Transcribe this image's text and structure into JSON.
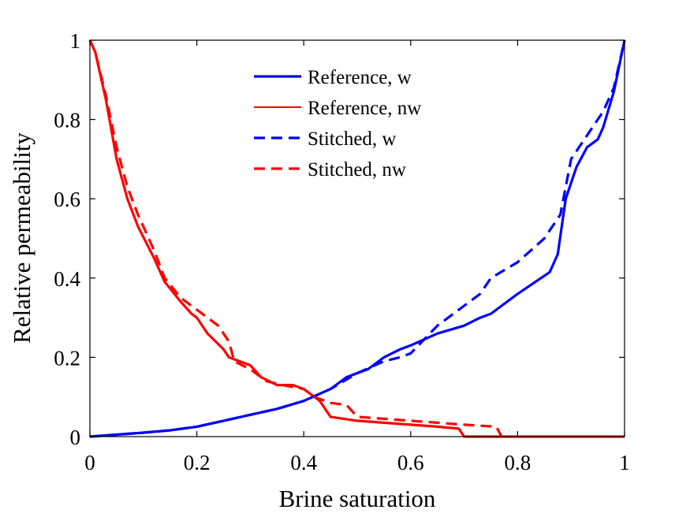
{
  "chart_data": {
    "type": "line",
    "title": "",
    "xlabel": "Brine saturation",
    "ylabel": "Relative permeability",
    "xlim": [
      0,
      1
    ],
    "ylim": [
      0,
      1
    ],
    "xticks": [
      "0",
      "0.2",
      "0.4",
      "0.6",
      "0.8",
      "1"
    ],
    "yticks": [
      "0",
      "0.2",
      "0.4",
      "0.6",
      "0.8",
      "1"
    ],
    "grid": false,
    "legend_position": "top-center",
    "series": [
      {
        "name": "Reference, w",
        "color": "#0000ff",
        "dash": "solid",
        "x": [
          0,
          0.05,
          0.1,
          0.15,
          0.2,
          0.25,
          0.3,
          0.35,
          0.4,
          0.45,
          0.48,
          0.5,
          0.52,
          0.55,
          0.58,
          0.6,
          0.65,
          0.7,
          0.73,
          0.75,
          0.8,
          0.86,
          0.875,
          0.89,
          0.91,
          0.93,
          0.95,
          0.96,
          0.98,
          1.0
        ],
        "y": [
          0,
          0.005,
          0.01,
          0.016,
          0.025,
          0.04,
          0.055,
          0.07,
          0.09,
          0.12,
          0.15,
          0.16,
          0.17,
          0.2,
          0.22,
          0.23,
          0.26,
          0.28,
          0.3,
          0.31,
          0.36,
          0.415,
          0.46,
          0.6,
          0.68,
          0.73,
          0.75,
          0.78,
          0.87,
          1.0
        ]
      },
      {
        "name": "Reference, nw",
        "color": "#ff0000",
        "dash": "solid",
        "x": [
          0,
          0.01,
          0.03,
          0.05,
          0.07,
          0.09,
          0.12,
          0.14,
          0.17,
          0.19,
          0.2,
          0.22,
          0.25,
          0.26,
          0.3,
          0.32,
          0.35,
          0.38,
          0.4,
          0.43,
          0.45,
          0.5,
          0.55,
          0.6,
          0.65,
          0.69,
          0.7,
          0.8,
          1.0
        ],
        "y": [
          1.0,
          0.97,
          0.85,
          0.7,
          0.6,
          0.53,
          0.45,
          0.39,
          0.34,
          0.31,
          0.3,
          0.26,
          0.22,
          0.2,
          0.18,
          0.15,
          0.13,
          0.13,
          0.12,
          0.09,
          0.05,
          0.04,
          0.035,
          0.03,
          0.025,
          0.02,
          0.0,
          0.0,
          0.0
        ]
      },
      {
        "name": "Stitched, w",
        "color": "#0000ff",
        "dash": "dashed",
        "x": [
          0,
          0.05,
          0.1,
          0.15,
          0.2,
          0.25,
          0.3,
          0.35,
          0.4,
          0.45,
          0.5,
          0.55,
          0.58,
          0.6,
          0.65,
          0.7,
          0.73,
          0.75,
          0.8,
          0.85,
          0.88,
          0.9,
          0.93,
          0.96,
          0.98,
          1.0
        ],
        "y": [
          0,
          0.005,
          0.01,
          0.016,
          0.025,
          0.04,
          0.055,
          0.07,
          0.09,
          0.12,
          0.16,
          0.19,
          0.2,
          0.21,
          0.28,
          0.33,
          0.36,
          0.4,
          0.44,
          0.5,
          0.56,
          0.7,
          0.76,
          0.82,
          0.88,
          1.0
        ]
      },
      {
        "name": "Stitched, nw",
        "color": "#ff0000",
        "dash": "dashed",
        "x": [
          0,
          0.01,
          0.03,
          0.05,
          0.07,
          0.09,
          0.12,
          0.14,
          0.17,
          0.2,
          0.24,
          0.26,
          0.27,
          0.3,
          0.33,
          0.36,
          0.4,
          0.42,
          0.45,
          0.48,
          0.5,
          0.55,
          0.6,
          0.65,
          0.7,
          0.76,
          0.77
        ],
        "y": [
          1.0,
          0.97,
          0.86,
          0.73,
          0.63,
          0.56,
          0.47,
          0.4,
          0.35,
          0.32,
          0.28,
          0.24,
          0.19,
          0.17,
          0.14,
          0.13,
          0.12,
          0.1,
          0.085,
          0.08,
          0.05,
          0.045,
          0.04,
          0.035,
          0.03,
          0.025,
          0.0
        ]
      }
    ]
  }
}
